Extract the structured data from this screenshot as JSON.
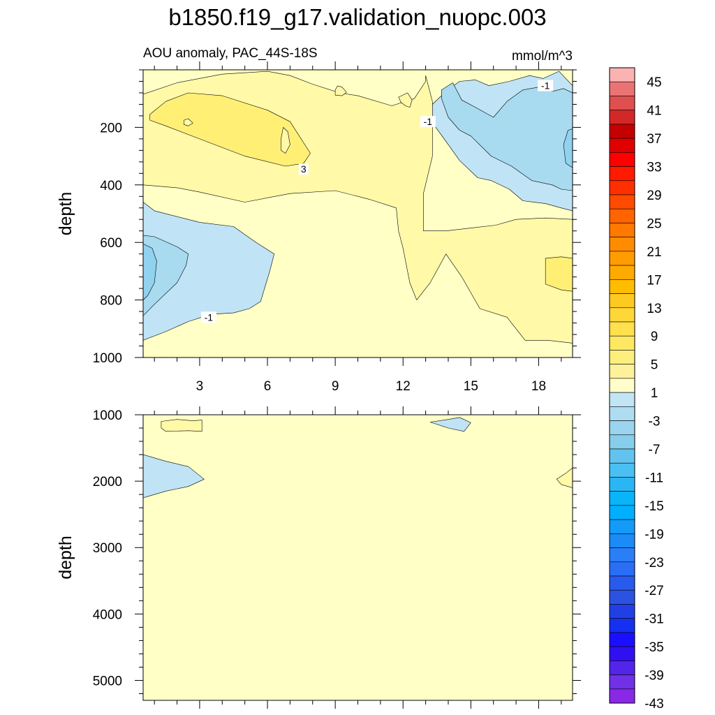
{
  "chart_data": {
    "type": "contour",
    "title": "b1850.f19_g17.validation_nuopc.003",
    "subtitle_left": "AOU anomaly, PAC_44S-18S",
    "units": "mmol/m^3",
    "colors": {
      "bg": "#ffffc6",
      "c1to3": "#fff9a8",
      "c3to5": "#fff075",
      "cm1to3": "#c0e4f5",
      "cm3to5": "#a8daf0",
      "cm5to7": "#91d2ee",
      "contour": "#000000"
    },
    "panels": [
      {
        "name": "upper",
        "ylabel": "depth",
        "xlabel": "",
        "xlim": [
          0.5,
          19.5
        ],
        "ylim": [
          1000,
          0
        ],
        "xticks": [
          3,
          6,
          9,
          12,
          15,
          18
        ],
        "xtick_labels": [
          "3",
          "6",
          "9",
          "12",
          "15",
          "18"
        ],
        "yticks": [
          200,
          400,
          600,
          800,
          1000
        ],
        "ytick_labels": [
          "200",
          "400",
          "600",
          "800",
          "1000"
        ],
        "contour_labels": [
          {
            "text": "3",
            "x": 7.6,
            "y": 345
          },
          {
            "text": "-1",
            "x": 3.4,
            "y": 860
          },
          {
            "text": "-1",
            "x": 13.1,
            "y": 180
          },
          {
            "text": "-1",
            "x": 18.3,
            "y": 55
          }
        ],
        "regions": [
          {
            "level": "c1to3",
            "pts": [
              [
                0.5,
                85
              ],
              [
                2,
                45
              ],
              [
                4,
                15
              ],
              [
                6,
                5
              ],
              [
                7,
                20
              ],
              [
                8,
                50
              ],
              [
                9.2,
                80
              ],
              [
                10,
                90
              ],
              [
                11.5,
                125
              ],
              [
                12.5,
                100
              ],
              [
                13,
                40
              ],
              [
                13,
                20
              ],
              [
                13.3,
                110
              ],
              [
                13.3,
                300
              ],
              [
                12.9,
                430
              ],
              [
                12.9,
                560
              ],
              [
                13.9,
                560
              ],
              [
                15,
                550
              ],
              [
                16.1,
                540
              ],
              [
                17,
                520
              ],
              [
                18.3,
                515
              ],
              [
                19.5,
                520
              ],
              [
                19.5,
                950
              ],
              [
                18.4,
                940
              ],
              [
                17.4,
                940
              ],
              [
                16.6,
                860
              ],
              [
                15.4,
                830
              ],
              [
                14.6,
                720
              ],
              [
                13.9,
                640
              ],
              [
                13.2,
                740
              ],
              [
                12.6,
                800
              ],
              [
                12.3,
                740
              ],
              [
                12,
                620
              ],
              [
                11.8,
                560
              ],
              [
                11.7,
                480
              ],
              [
                10.5,
                450
              ],
              [
                9,
                420
              ],
              [
                7,
                430
              ],
              [
                5,
                460
              ],
              [
                3,
                425
              ],
              [
                2,
                410
              ],
              [
                0.5,
                400
              ]
            ]
          },
          {
            "level": "c3to5",
            "pts": [
              [
                0.8,
                155
              ],
              [
                1.5,
                110
              ],
              [
                2.5,
                80
              ],
              [
                4,
                90
              ],
              [
                6,
                140
              ],
              [
                7,
                180
              ],
              [
                7.9,
                290
              ],
              [
                7.6,
                325
              ],
              [
                6.8,
                335
              ],
              [
                5,
                300
              ],
              [
                3,
                240
              ],
              [
                1.5,
                195
              ],
              [
                0.8,
                175
              ]
            ]
          },
          {
            "level": "c3to5",
            "pts": [
              [
                18.3,
                655
              ],
              [
                19,
                650
              ],
              [
                19.5,
                655
              ],
              [
                19.5,
                770
              ],
              [
                19,
                765
              ],
              [
                18.3,
                745
              ]
            ]
          },
          {
            "level": "cm1to3",
            "pts": [
              [
                13.3,
                120
              ],
              [
                13.9,
                75
              ],
              [
                14.5,
                40
              ],
              [
                15.2,
                35
              ],
              [
                15.8,
                55
              ],
              [
                16.7,
                40
              ],
              [
                17.6,
                20
              ],
              [
                18.2,
                30
              ],
              [
                18.9,
                5
              ],
              [
                19.5,
                55
              ],
              [
                19.5,
                490
              ],
              [
                19,
                480
              ],
              [
                18.3,
                465
              ],
              [
                17.3,
                455
              ],
              [
                16.7,
                415
              ],
              [
                15.9,
                385
              ],
              [
                15.3,
                375
              ],
              [
                14.5,
                315
              ],
              [
                14,
                260
              ],
              [
                13.4,
                195
              ],
              [
                13.3,
                160
              ]
            ]
          },
          {
            "level": "cm3to5",
            "pts": [
              [
                13.7,
                70
              ],
              [
                14.2,
                45
              ],
              [
                14.6,
                105
              ],
              [
                15.2,
                130
              ],
              [
                16,
                165
              ],
              [
                16.6,
                110
              ],
              [
                17.3,
                70
              ],
              [
                18,
                60
              ],
              [
                18.6,
                75
              ],
              [
                19.1,
                65
              ],
              [
                19.5,
                80
              ],
              [
                19.5,
                420
              ],
              [
                19,
                415
              ],
              [
                18.6,
                400
              ],
              [
                17.7,
                385
              ],
              [
                16.8,
                335
              ],
              [
                15.9,
                300
              ],
              [
                15,
                230
              ],
              [
                14.5,
                210
              ],
              [
                14,
                165
              ],
              [
                13.7,
                100
              ]
            ]
          },
          {
            "level": "cm5to7",
            "pts": [
              [
                19.3,
                210
              ],
              [
                19.5,
                205
              ],
              [
                19.5,
                340
              ],
              [
                19.2,
                325
              ],
              [
                19.1,
                260
              ]
            ]
          },
          {
            "level": "cm1to3",
            "pts": [
              [
                0.5,
                460
              ],
              [
                1,
                490
              ],
              [
                3,
                530
              ],
              [
                4.5,
                545
              ],
              [
                5.5,
                600
              ],
              [
                6.3,
                640
              ],
              [
                6.1,
                700
              ],
              [
                5.7,
                805
              ],
              [
                5.2,
                830
              ],
              [
                4.5,
                845
              ],
              [
                3.5,
                850
              ],
              [
                2.5,
                875
              ],
              [
                1.5,
                910
              ],
              [
                0.5,
                940
              ]
            ]
          },
          {
            "level": "cm3to5",
            "pts": [
              [
                0.5,
                575
              ],
              [
                1,
                580
              ],
              [
                2,
                615
              ],
              [
                2.5,
                640
              ],
              [
                2.4,
                680
              ],
              [
                2,
                740
              ],
              [
                1,
                815
              ],
              [
                0.5,
                855
              ]
            ]
          },
          {
            "level": "cm5to7",
            "pts": [
              [
                0.5,
                605
              ],
              [
                0.9,
                620
              ],
              [
                1.1,
                665
              ],
              [
                1,
                740
              ],
              [
                0.7,
                785
              ],
              [
                0.5,
                800
              ]
            ]
          },
          {
            "level": "c1to3",
            "pts": [
              [
                9.1,
                56
              ],
              [
                9.3,
                60
              ],
              [
                9.5,
                78
              ],
              [
                9.3,
                90
              ],
              [
                9,
                88
              ],
              [
                9,
                70
              ]
            ]
          },
          {
            "level": "c1to3",
            "pts": [
              [
                11.8,
                95
              ],
              [
                12.2,
                80
              ],
              [
                12.4,
                105
              ],
              [
                12.3,
                130
              ],
              [
                12.1,
                125
              ],
              [
                11.9,
                112
              ]
            ]
          },
          {
            "level": "c1to3",
            "pts": [
              [
                6.7,
                200
              ],
              [
                6.9,
                215
              ],
              [
                7,
                260
              ],
              [
                6.8,
                290
              ],
              [
                6.6,
                280
              ],
              [
                6.6,
                240
              ]
            ]
          },
          {
            "level": "c1to3",
            "pts": [
              [
                2.3,
                175
              ],
              [
                2.5,
                170
              ],
              [
                2.7,
                185
              ],
              [
                2.5,
                195
              ],
              [
                2.3,
                190
              ]
            ]
          }
        ]
      },
      {
        "name": "lower",
        "ylabel": "depth",
        "xlabel": "",
        "xlim": [
          0.5,
          19.5
        ],
        "ylim": [
          5300,
          1000
        ],
        "xticks": [
          3,
          6,
          9,
          12,
          15,
          18
        ],
        "yticks": [
          1000,
          2000,
          3000,
          4000,
          5000
        ],
        "ytick_labels": [
          "1000",
          "2000",
          "3000",
          "4000",
          "5000"
        ],
        "contour_labels": [],
        "regions": [
          {
            "level": "c1to3",
            "pts": [
              [
                1.3,
                1100
              ],
              [
                2,
                1070
              ],
              [
                2.7,
                1090
              ],
              [
                3.1,
                1080
              ],
              [
                3.1,
                1250
              ],
              [
                2.5,
                1240
              ],
              [
                1.5,
                1250
              ],
              [
                1.3,
                1200
              ]
            ]
          },
          {
            "level": "cm1to3",
            "pts": [
              [
                13.2,
                1110
              ],
              [
                14,
                1070
              ],
              [
                14.5,
                1040
              ],
              [
                15,
                1120
              ],
              [
                14.7,
                1250
              ],
              [
                14,
                1200
              ]
            ]
          },
          {
            "level": "cm1to3",
            "pts": [
              [
                0.5,
                1600
              ],
              [
                1.5,
                1700
              ],
              [
                2.5,
                1780
              ],
              [
                3.2,
                1970
              ],
              [
                2.5,
                2080
              ],
              [
                1.5,
                2150
              ],
              [
                0.5,
                2250
              ]
            ]
          },
          {
            "level": "c1to3",
            "pts": [
              [
                19.5,
                1800
              ],
              [
                19.5,
                2100
              ],
              [
                19,
                2050
              ],
              [
                18.8,
                1970
              ],
              [
                19.2,
                1880
              ]
            ]
          }
        ]
      }
    ],
    "colorbar": {
      "labels": [
        "45",
        "41",
        "37",
        "33",
        "29",
        "25",
        "21",
        "17",
        "13",
        "9",
        "5",
        "1",
        "-3",
        "-7",
        "-11",
        "-15",
        "-19",
        "-23",
        "-27",
        "-31",
        "-35",
        "-39",
        "-43"
      ],
      "colors": [
        "#fab2b2",
        "#ea7474",
        "#e04f4f",
        "#d32828",
        "#c40000",
        "#e00000",
        "#ff0000",
        "#ff1a00",
        "#ff3000",
        "#ff4b00",
        "#ff6400",
        "#ff7800",
        "#ff8c00",
        "#ff9c00",
        "#ffaa00",
        "#ffbd00",
        "#ffca1f",
        "#ffd838",
        "#ffe04e",
        "#fee861",
        "#fdef7e",
        "#fdf29b",
        "#fffdc9",
        "#c2e5f5",
        "#aedcf1",
        "#9bd4ee",
        "#87ceec",
        "#62c4ee",
        "#4ac0f2",
        "#2ab6f4",
        "#09b4f9",
        "#00b0ff",
        "#149af9",
        "#1b8bf7",
        "#2a7ef7",
        "#2a6ef5",
        "#285aee",
        "#2c52e2",
        "#2040e6",
        "#1530f0",
        "#1a10ff",
        "#3010f0",
        "#5225e8",
        "#7030e6",
        "#8a28e8"
      ]
    }
  }
}
